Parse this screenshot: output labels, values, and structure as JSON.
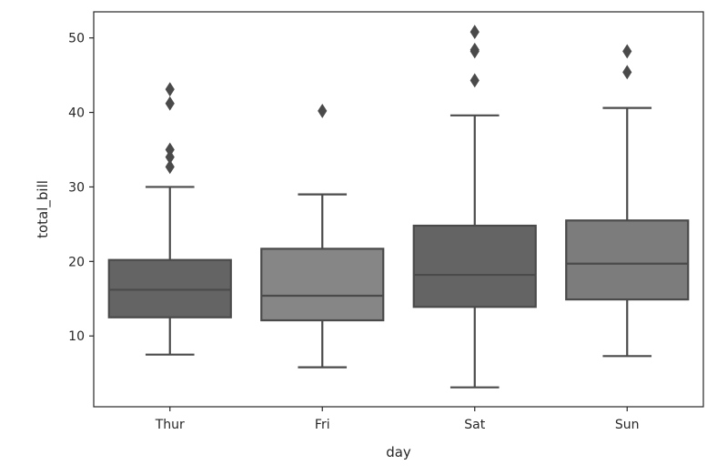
{
  "chart_data": {
    "type": "box",
    "xlabel": "day",
    "ylabel": "total_bill",
    "categories": [
      "Thur",
      "Fri",
      "Sat",
      "Sun"
    ],
    "y_ticks": [
      10,
      20,
      30,
      40,
      50
    ],
    "ylim": [
      0.5,
      53.5
    ],
    "grid": false,
    "legend": "none",
    "boxes": [
      {
        "category": "Thur",
        "whisker_low": 7.5,
        "q1": 12.5,
        "median": 16.2,
        "q3": 20.2,
        "whisker_high": 30.0,
        "outliers": [
          32.7,
          34.0,
          35.0,
          41.2,
          43.1
        ],
        "color": "#646464"
      },
      {
        "category": "Fri",
        "whisker_low": 5.8,
        "q1": 12.1,
        "median": 15.4,
        "q3": 21.7,
        "whisker_high": 29.0,
        "outliers": [
          40.2
        ],
        "color": "#868686"
      },
      {
        "category": "Sat",
        "whisker_low": 3.1,
        "q1": 13.9,
        "median": 18.2,
        "q3": 24.8,
        "whisker_high": 39.6,
        "outliers": [
          44.3,
          48.2,
          48.4,
          50.8
        ],
        "color": "#646464"
      },
      {
        "category": "Sun",
        "whisker_low": 7.3,
        "q1": 14.9,
        "median": 19.7,
        "q3": 25.5,
        "whisker_high": 40.6,
        "outliers": [
          45.4,
          48.2
        ],
        "color": "#7c7c7c"
      }
    ],
    "line_color": "#4a4a4a",
    "axes_color": "#262626"
  }
}
